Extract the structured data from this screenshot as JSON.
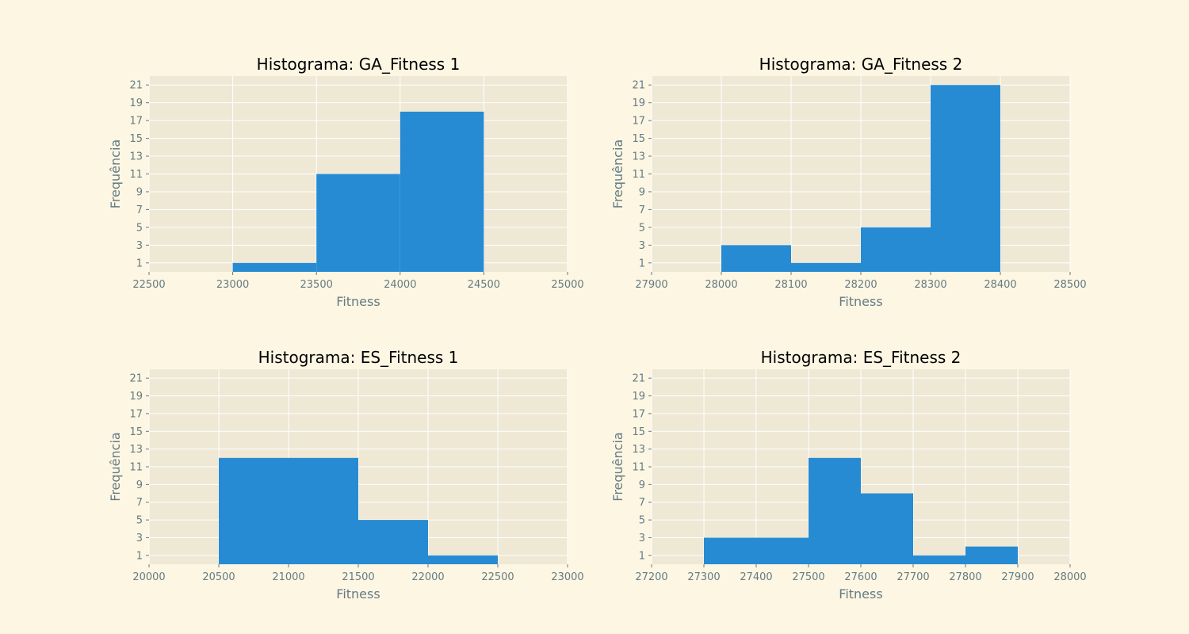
{
  "figure": {
    "background": "#fdf6e3",
    "axes_background": "#eee8d5",
    "grid_color": "#ffffff",
    "bar_color": "#268bd2",
    "text_color": "#657b83",
    "title_color": "#000000"
  },
  "chart_data": [
    {
      "type": "bar",
      "title": "Histograma: GA_Fitness 1",
      "xlabel": "Fitness",
      "ylabel": "Frequência",
      "xlim": [
        22500,
        25000
      ],
      "ylim": [
        0,
        22
      ],
      "xticks": [
        22500,
        23000,
        23500,
        24000,
        24500,
        25000
      ],
      "yticks": [
        1,
        3,
        5,
        7,
        9,
        11,
        13,
        15,
        17,
        19,
        21
      ],
      "grid": true,
      "bins": [
        {
          "x0": 23000,
          "x1": 23500,
          "count": 1
        },
        {
          "x0": 23500,
          "x1": 24000,
          "count": 11
        },
        {
          "x0": 24000,
          "x1": 24500,
          "count": 18
        }
      ]
    },
    {
      "type": "bar",
      "title": "Histograma: GA_Fitness 2",
      "xlabel": "Fitness",
      "ylabel": "Frequência",
      "xlim": [
        27900,
        28500
      ],
      "ylim": [
        0,
        22
      ],
      "xticks": [
        27900,
        28000,
        28100,
        28200,
        28300,
        28400,
        28500
      ],
      "yticks": [
        1,
        3,
        5,
        7,
        9,
        11,
        13,
        15,
        17,
        19,
        21
      ],
      "grid": true,
      "bins": [
        {
          "x0": 28000,
          "x1": 28100,
          "count": 3
        },
        {
          "x0": 28100,
          "x1": 28200,
          "count": 1
        },
        {
          "x0": 28200,
          "x1": 28300,
          "count": 5
        },
        {
          "x0": 28300,
          "x1": 28400,
          "count": 21
        }
      ]
    },
    {
      "type": "bar",
      "title": "Histograma: ES_Fitness 1",
      "xlabel": "Fitness",
      "ylabel": "Frequência",
      "xlim": [
        20000,
        23000
      ],
      "ylim": [
        0,
        22
      ],
      "xticks": [
        20000,
        20500,
        21000,
        21500,
        22000,
        22500,
        23000
      ],
      "yticks": [
        1,
        3,
        5,
        7,
        9,
        11,
        13,
        15,
        17,
        19,
        21
      ],
      "grid": true,
      "bins": [
        {
          "x0": 20500,
          "x1": 21500,
          "count": 12
        },
        {
          "x0": 21500,
          "x1": 22000,
          "count": 5
        },
        {
          "x0": 22000,
          "x1": 22500,
          "count": 1
        }
      ]
    },
    {
      "type": "bar",
      "title": "Histograma: ES_Fitness 2",
      "xlabel": "Fitness",
      "ylabel": "Frequência",
      "xlim": [
        27200,
        28000
      ],
      "ylim": [
        0,
        22
      ],
      "xticks": [
        27200,
        27300,
        27400,
        27500,
        27600,
        27700,
        27800,
        27900,
        28000
      ],
      "yticks": [
        1,
        3,
        5,
        7,
        9,
        11,
        13,
        15,
        17,
        19,
        21
      ],
      "grid": true,
      "bins": [
        {
          "x0": 27300,
          "x1": 27500,
          "count": 3
        },
        {
          "x0": 27500,
          "x1": 27600,
          "count": 12
        },
        {
          "x0": 27600,
          "x1": 27700,
          "count": 8
        },
        {
          "x0": 27700,
          "x1": 27800,
          "count": 1
        },
        {
          "x0": 27800,
          "x1": 27900,
          "count": 2
        }
      ]
    }
  ]
}
